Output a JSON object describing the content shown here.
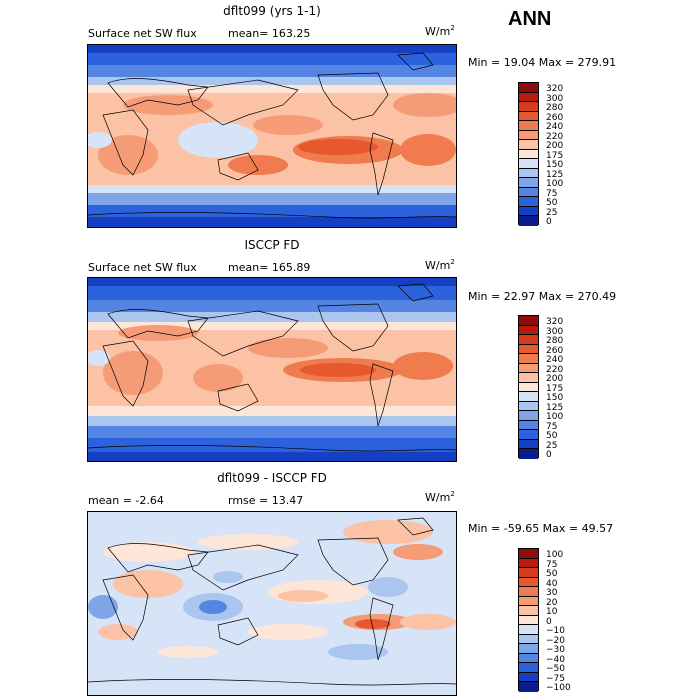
{
  "season": "ANN",
  "units_base": "W/m",
  "units_exp": "2",
  "panels": [
    {
      "title": "dflt099 (yrs 1-1)",
      "left_label": "Surface net SW flux",
      "mid_label": "mean= 163.25",
      "stats": "Min =  19.04 Max = 279.91",
      "levels": [
        "320",
        "300",
        "280",
        "260",
        "240",
        "220",
        "200",
        "175",
        "150",
        "125",
        "100",
        "75",
        "50",
        "25",
        "0"
      ]
    },
    {
      "title": "ISCCP FD",
      "left_label": "Surface net SW flux",
      "mid_label": "mean= 165.89",
      "stats": "Min =  22.97 Max = 270.49",
      "levels": [
        "320",
        "300",
        "280",
        "260",
        "240",
        "220",
        "200",
        "175",
        "150",
        "125",
        "100",
        "75",
        "50",
        "25",
        "0"
      ]
    },
    {
      "title": "dflt099 - ISCCP FD",
      "left_label": "mean =  -2.64",
      "mid_label": "rmse =  13.47",
      "stats": "Min = -59.65 Max =  49.57",
      "levels": [
        "100",
        "75",
        "50",
        "40",
        "30",
        "20",
        "10",
        "0",
        "−10",
        "−20",
        "−30",
        "−40",
        "−50",
        "−75",
        "−100"
      ]
    }
  ],
  "colors": {
    "abs": [
      "#8b0d0d",
      "#b61d10",
      "#d73a1e",
      "#e8582f",
      "#f07b4f",
      "#f59c76",
      "#fbc2a5",
      "#fde6d8",
      "#d7e3f7",
      "#aac6ef",
      "#7ea5e8",
      "#5485e3",
      "#2c63dc",
      "#1540c4",
      "#0c1b8e"
    ],
    "diff": [
      "#8b0d0d",
      "#b61d10",
      "#d73a1e",
      "#e8582f",
      "#f07b4f",
      "#f59c76",
      "#fbc2a5",
      "#fde6d8",
      "#d7e3f7",
      "#aac6ef",
      "#7ea5e8",
      "#5485e3",
      "#2c63dc",
      "#1540c4",
      "#0c1b8e"
    ]
  }
}
